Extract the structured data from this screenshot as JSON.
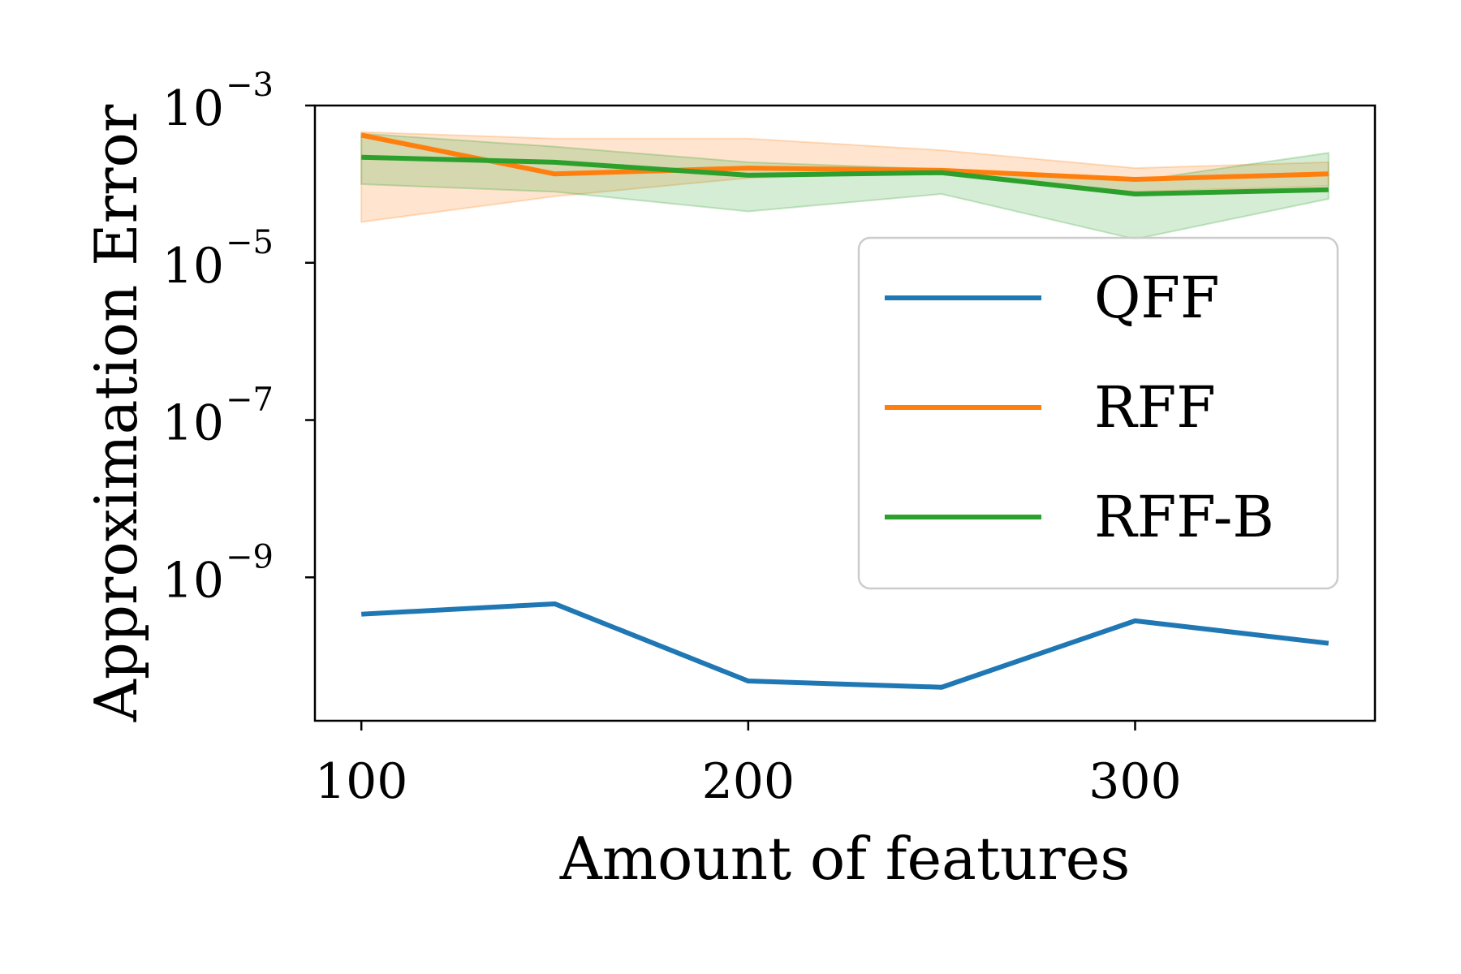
{
  "chart_data": {
    "type": "line",
    "title": "",
    "xlabel": "Amount of features",
    "ylabel": "Approximation Error",
    "x": [
      100,
      150,
      200,
      250,
      300,
      350
    ],
    "xlim": [
      88,
      362
    ],
    "ylim": [
      1.5e-11,
      0.001
    ],
    "yscale": "log",
    "grid": false,
    "legend_position": "right",
    "xticks": [
      {
        "value": 100,
        "label": "100"
      },
      {
        "value": 200,
        "label": "200"
      },
      {
        "value": 300,
        "label": "300"
      }
    ],
    "yticks": [
      {
        "value": 0.001,
        "base": "10",
        "exp": "−3"
      },
      {
        "value": 1e-05,
        "base": "10",
        "exp": "−5"
      },
      {
        "value": 1e-07,
        "base": "10",
        "exp": "−7"
      },
      {
        "value": 1e-09,
        "base": "10",
        "exp": "−9"
      }
    ],
    "series": [
      {
        "name": "QFF",
        "color": "#1f77b4",
        "values": [
          3.4e-10,
          4.6e-10,
          4.8e-11,
          4e-11,
          2.8e-10,
          1.45e-10
        ]
      },
      {
        "name": "RFF",
        "color": "#ff7f0e",
        "values": [
          0.00042,
          0.000135,
          0.00016,
          0.00015,
          0.000115,
          0.000135
        ],
        "lower": [
          3.3e-05,
          7e-05,
          0.00012,
          0.00014,
          8e-05,
          9.5e-05
        ],
        "upper": [
          0.00046,
          0.00038,
          0.00038,
          0.00027,
          0.00016,
          0.00019
        ]
      },
      {
        "name": "RFF-B",
        "color": "#2ca02c",
        "values": [
          0.00022,
          0.00019,
          0.00013,
          0.00014,
          7.5e-05,
          8.5e-05
        ],
        "lower": [
          0.0001,
          8e-05,
          4.5e-05,
          7.5e-05,
          2e-05,
          6.5e-05
        ],
        "upper": [
          0.00044,
          0.0003,
          0.00019,
          0.000155,
          0.00011,
          0.00025
        ]
      }
    ]
  }
}
